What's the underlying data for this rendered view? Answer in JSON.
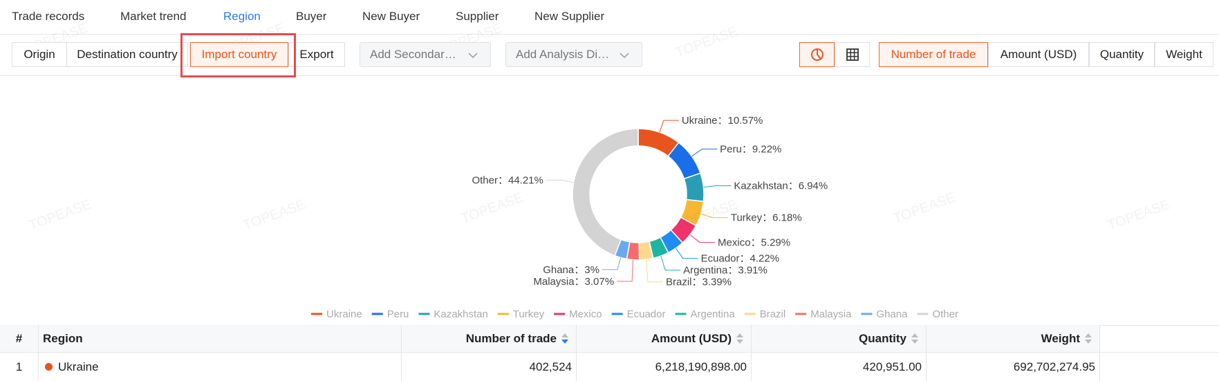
{
  "tabs": [
    {
      "label": "Trade records"
    },
    {
      "label": "Market trend"
    },
    {
      "label": "Region",
      "selected": true
    },
    {
      "label": "Buyer"
    },
    {
      "label": "New Buyer"
    },
    {
      "label": "Supplier"
    },
    {
      "label": "New Supplier"
    }
  ],
  "dimension_buttons": [
    {
      "label": "Origin"
    },
    {
      "label": "Destination country"
    },
    {
      "label": "Import country",
      "selected": true,
      "highlighted": true
    },
    {
      "label": "Export"
    }
  ],
  "dropdowns": [
    "Add Secondar…",
    "Add Analysis Di…"
  ],
  "view_buttons": [
    {
      "icon": "pie",
      "selected": true
    },
    {
      "icon": "table"
    }
  ],
  "metric_buttons": [
    {
      "label": "Number of trade",
      "selected": true
    },
    {
      "label": "Amount (USD)"
    },
    {
      "label": "Quantity"
    },
    {
      "label": "Weight"
    }
  ],
  "watermark": "TOPEASE",
  "chart_data": {
    "type": "pie",
    "donut": true,
    "categories": [
      "Ukraine",
      "Peru",
      "Kazakhstan",
      "Turkey",
      "Mexico",
      "Ecuador",
      "Argentina",
      "Brazil",
      "Malaysia",
      "Ghana",
      "Other"
    ],
    "values": [
      10.57,
      9.22,
      6.94,
      6.18,
      5.29,
      4.22,
      3.91,
      3.39,
      3.07,
      3,
      44.21
    ],
    "labels": [
      "Ukraine：10.57%",
      "Peru：9.22%",
      "Kazakhstan：6.94%",
      "Turkey：6.18%",
      "Mexico：5.29%",
      "Ecuador：4.22%",
      "Argentina：3.91%",
      "Brazil：3.39%",
      "Malaysia：3.07%",
      "Ghana：3%",
      "Other：44.21%"
    ],
    "colors": [
      "#e8541e",
      "#1a6fe8",
      "#2a9db5",
      "#f7b733",
      "#f0336a",
      "#1e8cf0",
      "#1fb5a3",
      "#fcd98a",
      "#f56c6c",
      "#6aa9f0",
      "#d3d3d3"
    ],
    "legend": "bottom"
  },
  "table": {
    "headers": [
      "#",
      "Region",
      "Number of trade",
      "Amount (USD)",
      "Quantity",
      "Weight"
    ],
    "sorted_column": 2,
    "rows": [
      [
        "1",
        "Ukraine",
        "402,524",
        "6,218,190,898.00",
        "420,951.00",
        "692,702,274.95"
      ]
    ]
  }
}
